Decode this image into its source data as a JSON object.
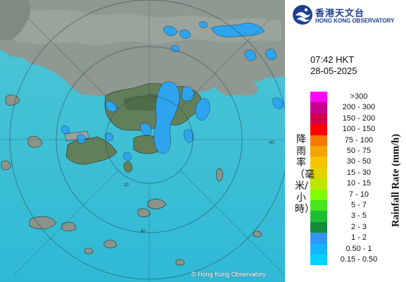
{
  "logo": {
    "name_cn": "香港天文台",
    "name_en": "HONG KONG OBSERVATORY",
    "icon": "hko-emblem-icon"
  },
  "timestamp": {
    "time": "07:42 HKT",
    "date": "28-05-2025"
  },
  "legend": {
    "title_en": "Rainfall Rate (mm/h)",
    "title_cn": "降雨率（毫米/小時）",
    "items": [
      {
        "label": ">300",
        "color": "#ff00ff"
      },
      {
        "label": "200 - 300",
        "color": "#c8008c"
      },
      {
        "label": "150 - 200",
        "color": "#d2004b"
      },
      {
        "label": "100 - 150",
        "color": "#ff0000"
      },
      {
        "label": "75 - 100",
        "color": "#f57800"
      },
      {
        "label": "50 - 75",
        "color": "#f5a500"
      },
      {
        "label": "30 - 50",
        "color": "#f5c300"
      },
      {
        "label": "15 - 30",
        "color": "#e1d200"
      },
      {
        "label": "10 - 15",
        "color": "#bee600"
      },
      {
        "label": "7 - 10",
        "color": "#7dff00"
      },
      {
        "label": "5 - 7",
        "color": "#46e61e"
      },
      {
        "label": "3 - 5",
        "color": "#1ebe32"
      },
      {
        "label": "2 - 3",
        "color": "#128c3c"
      },
      {
        "label": "1 - 2",
        "color": "#3296ff"
      },
      {
        "label": "0.50 - 1",
        "color": "#14b4ff"
      },
      {
        "label": "0.15 - 0.50",
        "color": "#00d2ff"
      }
    ]
  },
  "map": {
    "copyright": "© Hong Kong Observatory",
    "range_rings": [
      "20",
      "40",
      "60"
    ],
    "colors": {
      "sea": "#3bbfd4",
      "land": "#8a948c",
      "hill": "#5d7a58",
      "rain_light": "#2fa6f0",
      "rain_core": "#1b8fe6"
    }
  }
}
